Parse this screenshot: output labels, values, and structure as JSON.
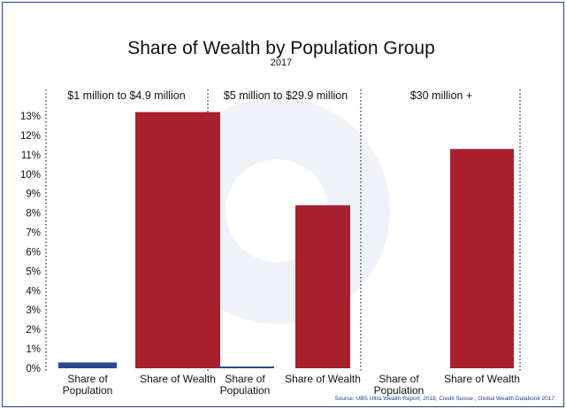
{
  "chart_data": {
    "type": "bar",
    "title": "Share of Wealth by Population Group",
    "subtitle": "2017",
    "ylim": [
      0,
      13
    ],
    "y_ticks": [
      "0%",
      "1%",
      "2%",
      "3%",
      "4%",
      "5%",
      "6%",
      "7%",
      "8%",
      "9%",
      "10%",
      "11%",
      "12%",
      "13%"
    ],
    "series_colors": {
      "Share of Population": "#2a4a8c",
      "Share of Wealth": "#a8202e"
    },
    "groups": [
      {
        "label": "$1 million to $4.9 million",
        "bars": [
          {
            "series": "Share of Population",
            "label_lines": [
              "Share of",
              "Population"
            ],
            "value": 0.3
          },
          {
            "series": "Share of Wealth",
            "label_lines": [
              "Share of Wealth"
            ],
            "value": 13.2
          }
        ]
      },
      {
        "label": "$5 million to $29.9 million",
        "bars": [
          {
            "series": "Share of Population",
            "label_lines": [
              "Share of",
              "Population"
            ],
            "value": 0.05
          },
          {
            "series": "Share of Wealth",
            "label_lines": [
              "Share of Wealth"
            ],
            "value": 8.4
          }
        ]
      },
      {
        "label": "$30 million +",
        "bars": [
          {
            "series": "Share of Population",
            "label_lines": [
              "Share of",
              "Population"
            ],
            "value": 0
          },
          {
            "series": "Share of Wealth",
            "label_lines": [
              "Share of Wealth"
            ],
            "value": 11.3
          }
        ]
      }
    ],
    "source": "Source: UBS Ultra Wealth Report, 2018, Credit Suisse , Global Wealth Databook 2017"
  }
}
